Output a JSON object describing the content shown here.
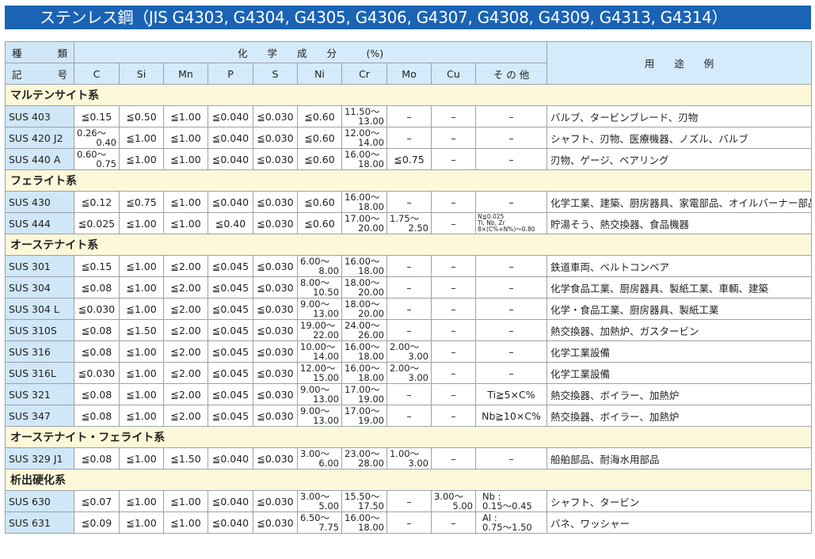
{
  "title": "ステンレス鋼（JIS G4303, G4304, G4305, G4306, G4307, G4308, G4309, G4313, G4314）",
  "header": {
    "type_top": [
      "種",
      "類"
    ],
    "type_bottom": [
      "記",
      "号"
    ],
    "chem": "化　　学　　成　　分　　　(%)",
    "use": "用　　途　　例",
    "cols": [
      "C",
      "Si",
      "Mn",
      "P",
      "S",
      "Ni",
      "Cr",
      "Mo",
      "Cu",
      "そ の 他"
    ]
  },
  "colors": {
    "title_bg": "#1a63b5",
    "header_bg": "#d3ebfa",
    "type_bg": "#cfe7f7",
    "section_bg": "#fdf8d9"
  },
  "rows": [
    {
      "section": "マルテンサイト系"
    },
    {
      "type": "SUS 403",
      "cells": [
        "≦0.15",
        "≦0.50",
        "≦1.00",
        "≦0.040",
        "≦0.030",
        "≦0.60",
        [
          "11.50〜",
          "13.00"
        ],
        "–",
        "–",
        "–"
      ],
      "use": "バルブ、タービンブレード、刃物"
    },
    {
      "type": "SUS 420 J2",
      "cells": [
        [
          "0.26〜",
          "0.40"
        ],
        "≦1.00",
        "≦1.00",
        "≦0.040",
        "≦0.030",
        "≦0.60",
        [
          "12.00〜",
          "14.00"
        ],
        "–",
        "–",
        "–"
      ],
      "use": "シャフト、刃物、医療機器、ノズル、バルブ"
    },
    {
      "type": "SUS 440 A",
      "cells": [
        [
          "0.60〜",
          "0.75"
        ],
        "≦1.00",
        "≦1.00",
        "≦0.040",
        "≦0.030",
        "≦0.60",
        [
          "16.00〜",
          "18.00"
        ],
        "≦0.75",
        "–",
        "–"
      ],
      "use": "刃物、ゲージ、ベアリング"
    },
    {
      "section": "フェライト系"
    },
    {
      "type": "SUS 430",
      "cells": [
        "≦0.12",
        "≦0.75",
        "≦1.00",
        "≦0.040",
        "≦0.030",
        "≦0.60",
        [
          "16.00〜",
          "18.00"
        ],
        "–",
        "–",
        "–"
      ],
      "use": "化学工業、建築、厨房器具、家電部品、オイルバーナー部品"
    },
    {
      "type": "SUS 444",
      "cells": [
        "≦0.025",
        "≦1.00",
        "≦1.00",
        "≦0.40",
        "≦0.030",
        "≦0.60",
        [
          "17.00〜",
          "20.00"
        ],
        [
          "1.75〜",
          "2.50"
        ],
        "–",
        {
          "tiny": [
            "N≦0.025",
            "Ti, Nb, Zr",
            "8×(C%+N%)〜0.80"
          ]
        }
      ],
      "use": "貯湯そう、熱交換器、食品機器"
    },
    {
      "section": "オーステナイト系"
    },
    {
      "type": "SUS 301",
      "cells": [
        "≦0.15",
        "≦1.00",
        "≦2.00",
        "≦0.045",
        "≦0.030",
        [
          "6.00〜",
          "8.00"
        ],
        [
          "16.00〜",
          "18.00"
        ],
        "–",
        "–",
        "–"
      ],
      "use": "鉄道車両、ベルトコンベア"
    },
    {
      "type": "SUS 304",
      "cells": [
        "≦0.08",
        "≦1.00",
        "≦2.00",
        "≦0.045",
        "≦0.030",
        [
          "8.00〜",
          "10.50"
        ],
        [
          "18.00〜",
          "20.00"
        ],
        "–",
        "–",
        "–"
      ],
      "use": "化学食品工業、厨房器具、製紙工業、車輌、建築"
    },
    {
      "type": "SUS 304 L",
      "cells": [
        "≦0.030",
        "≦1.00",
        "≦2.00",
        "≦0.045",
        "≦0.030",
        [
          "9.00〜",
          "13.00"
        ],
        [
          "18.00〜",
          "20.00"
        ],
        "–",
        "–",
        "–"
      ],
      "use": "化学・食品工業、厨房器具、製紙工業"
    },
    {
      "type": "SUS 310S",
      "cells": [
        "≦0.08",
        "≦1.50",
        "≦2.00",
        "≦0.045",
        "≦0.030",
        [
          "19.00〜",
          "22.00"
        ],
        [
          "24.00〜",
          "26.00"
        ],
        "–",
        "–",
        "–"
      ],
      "use": "熱交換器、加熱炉、ガスタービン"
    },
    {
      "type": "SUS 316",
      "cells": [
        "≦0.08",
        "≦1.00",
        "≦2.00",
        "≦0.045",
        "≦0.030",
        [
          "10.00〜",
          "14.00"
        ],
        [
          "16.00〜",
          "18.00"
        ],
        [
          "2.00〜",
          "3.00"
        ],
        "–",
        "–"
      ],
      "use": "化学工業設備"
    },
    {
      "type": "SUS 316L",
      "cells": [
        "≦0.030",
        "≦1.00",
        "≦2.00",
        "≦0.045",
        "≦0.030",
        [
          "12.00〜",
          "15.00"
        ],
        [
          "16.00〜",
          "18.00"
        ],
        [
          "2.00〜",
          "3.00"
        ],
        "–",
        "–"
      ],
      "use": "化学工業設備"
    },
    {
      "type": "SUS 321",
      "cells": [
        "≦0.08",
        "≦1.00",
        "≦2.00",
        "≦0.045",
        "≦0.030",
        [
          "9.00〜",
          "13.00"
        ],
        [
          "17.00〜",
          "19.00"
        ],
        "–",
        "–",
        "Ti≧5×C%"
      ],
      "use": "熱交換器、ボイラー、加熱炉"
    },
    {
      "type": "SUS 347",
      "cells": [
        "≦0.08",
        "≦1.00",
        "≦2.00",
        "≦0.045",
        "≦0.030",
        [
          "9.00〜",
          "13.00"
        ],
        [
          "17.00〜",
          "19.00"
        ],
        "–",
        "–",
        "Nb≧10×C%"
      ],
      "use": "熱交換器、ボイラー、加熱炉"
    },
    {
      "section": "オーステナイト・フェライト系"
    },
    {
      "type": "SUS 329 J1",
      "cells": [
        "≦0.08",
        "≦1.00",
        "≦1.50",
        "≦0.040",
        "≦0.030",
        [
          "3.00〜",
          "6.00"
        ],
        [
          "23.00〜",
          "28.00"
        ],
        [
          "1.00〜",
          "3.00"
        ],
        "–",
        "–"
      ],
      "use": "船舶部品、耐海水用部品"
    },
    {
      "section": "析出硬化系"
    },
    {
      "type": "SUS 630",
      "cells": [
        "≦0.07",
        "≦1.00",
        "≦1.00",
        "≦0.040",
        "≦0.030",
        [
          "3.00〜",
          "5.00"
        ],
        [
          "15.50〜",
          "17.50"
        ],
        "–",
        [
          "3.00〜",
          "5.00"
        ],
        {
          "small": [
            "Nb :",
            "0.15〜0.45"
          ]
        }
      ],
      "use": "シャフト、タービン"
    },
    {
      "type": "SUS 631",
      "cells": [
        "≦0.09",
        "≦1.00",
        "≦1.00",
        "≦0.040",
        "≦0.030",
        [
          "6.50〜",
          "7.75"
        ],
        [
          "16.00〜",
          "18.00"
        ],
        "–",
        "–",
        {
          "small": [
            "Al :",
            "0.75〜1.50"
          ]
        }
      ],
      "use": "バネ、ワッシャー"
    }
  ]
}
